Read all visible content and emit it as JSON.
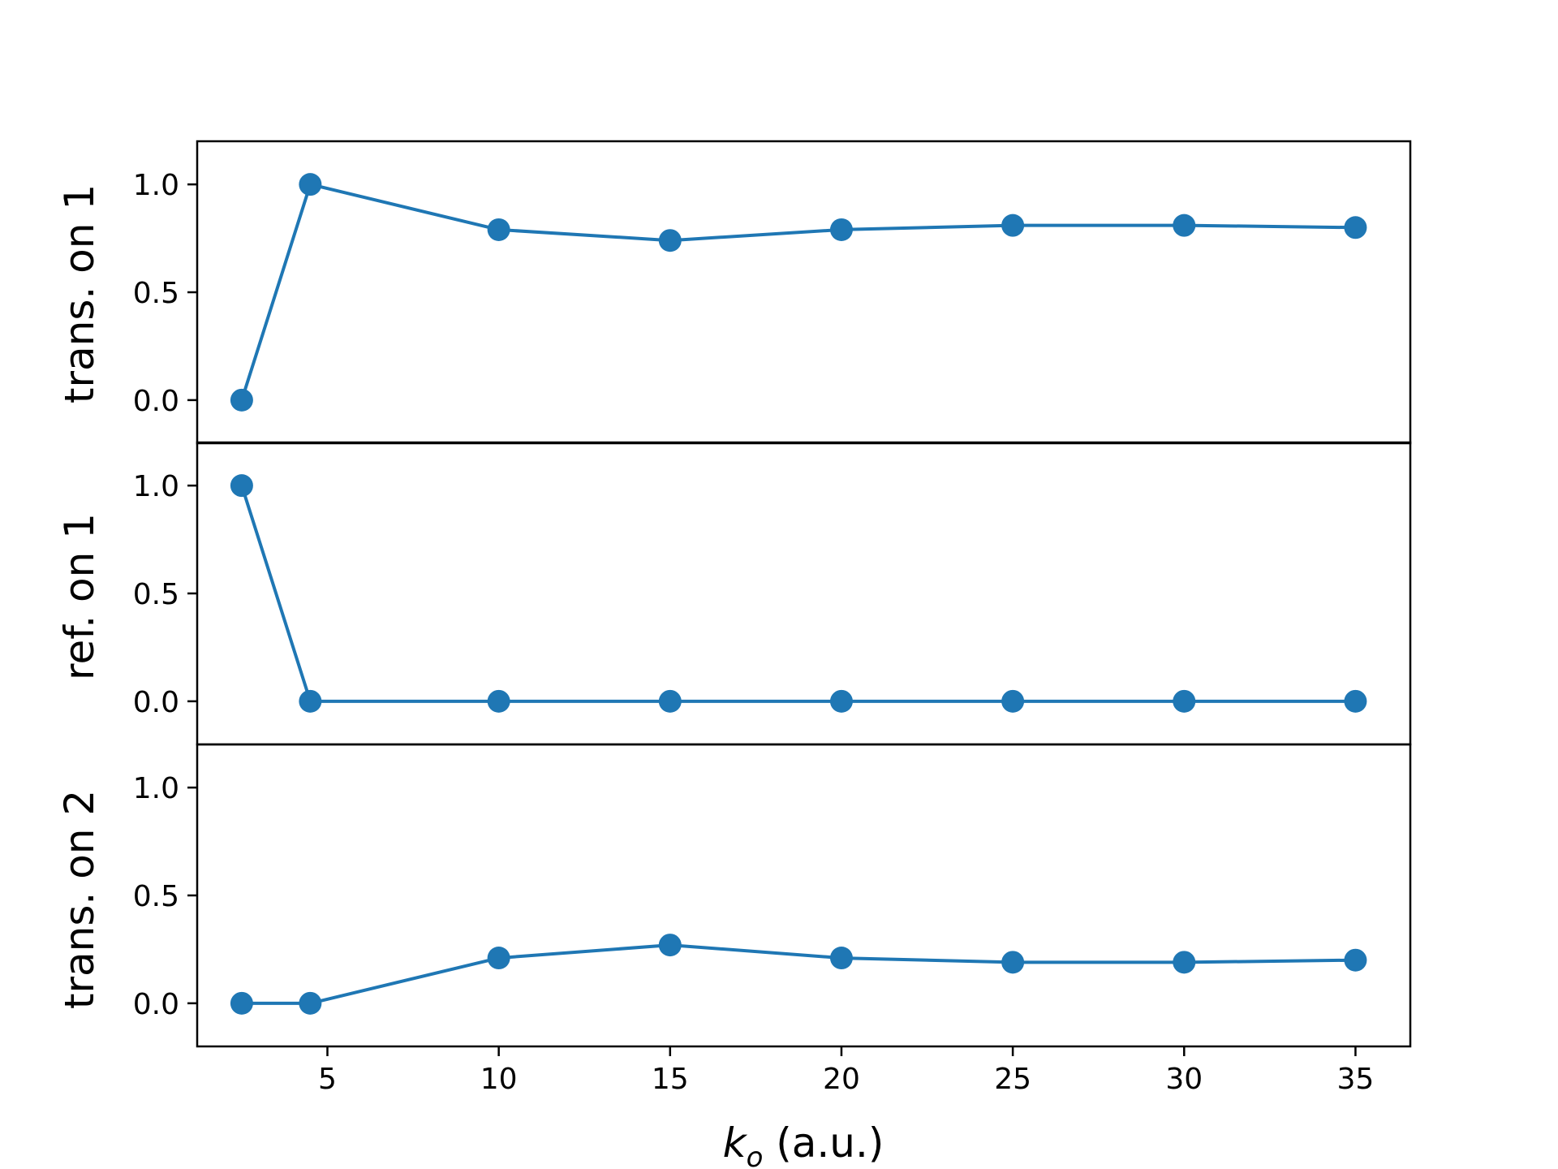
{
  "chart_data": {
    "type": "line",
    "x": [
      2.5,
      4.5,
      10,
      15,
      20,
      25,
      30,
      35
    ],
    "xlim": [
      1.2,
      36.6
    ],
    "xticks": [
      5,
      10,
      15,
      20,
      25,
      30,
      35
    ],
    "xlabel": {
      "symbol": "k",
      "subscript": "o",
      "unit": " (a.u.)"
    },
    "color": "#1f77b4",
    "grid": false,
    "legend": "none",
    "panels": [
      {
        "ylabel": "trans. on 1",
        "ylim": [
          -0.2,
          1.2
        ],
        "yticks": [
          "0.0",
          "0.5",
          "1.0"
        ],
        "values": [
          0.0,
          1.0,
          0.79,
          0.74,
          0.79,
          0.81,
          0.81,
          0.8
        ]
      },
      {
        "ylabel": "ref. on 1",
        "ylim": [
          -0.2,
          1.2
        ],
        "yticks": [
          "0.0",
          "0.5",
          "1.0"
        ],
        "values": [
          1.0,
          0.0,
          0.0,
          0.0,
          0.0,
          0.0,
          0.0,
          0.0
        ]
      },
      {
        "ylabel": "trans. on 2",
        "ylim": [
          -0.2,
          1.2
        ],
        "yticks": [
          "0.0",
          "0.5",
          "1.0"
        ],
        "values": [
          0.0,
          0.0,
          0.21,
          0.27,
          0.21,
          0.19,
          0.19,
          0.2
        ]
      }
    ]
  }
}
